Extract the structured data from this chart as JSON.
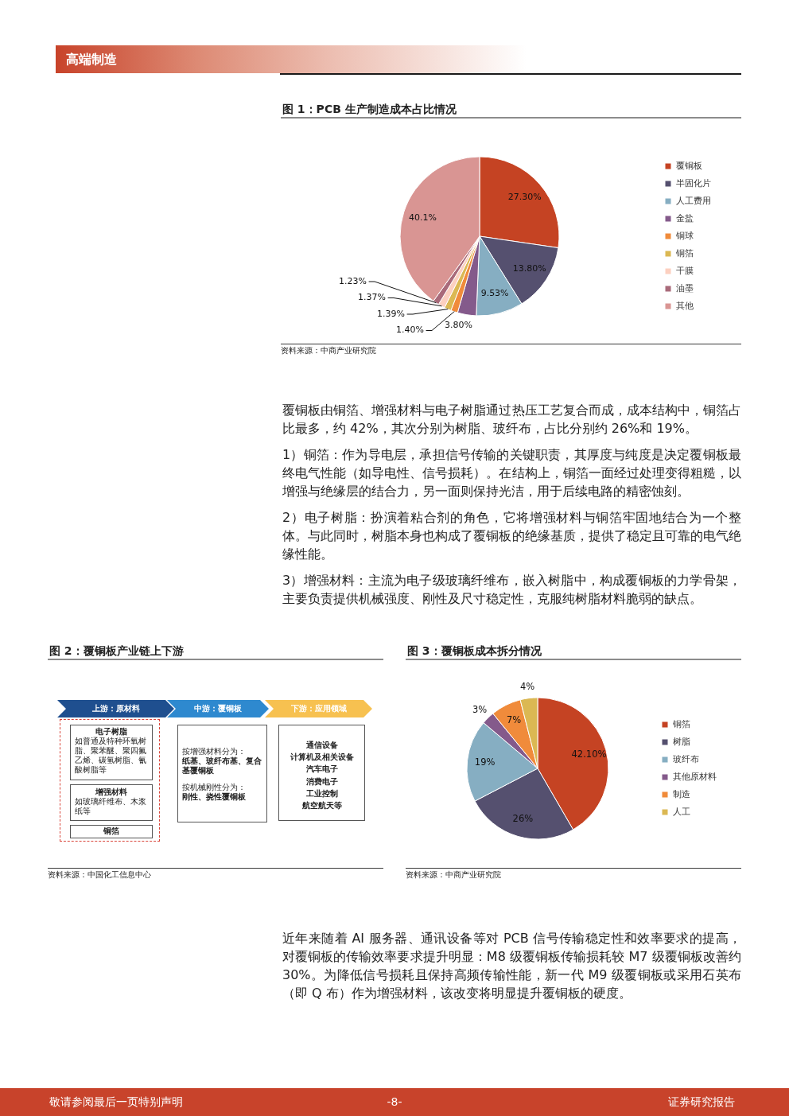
{
  "chart_data": [
    {
      "type": "other",
      "annotations": [
        "高端制造"
      ]
    },
    {
      "type": "pie",
      "title": "图 1：PCB 生产制造成本占比情况",
      "categories": [
        "覆铜板",
        "半固化片",
        "人工费用",
        "金盐",
        "铜球",
        "铜箔",
        "干膜",
        "油墨",
        "其他"
      ],
      "values": [
        27.3,
        13.8,
        9.53,
        3.8,
        1.4,
        1.39,
        1.37,
        1.23,
        40.1
      ],
      "value_labels": [
        "27.30%",
        "13.80%",
        "9.53%",
        "3.80%",
        "1.40%",
        "1.39%",
        "1.37%",
        "1.23%",
        "40.1%"
      ],
      "colors": [
        "#c54323",
        "#55506f",
        "#86aec2",
        "#845a8b",
        "#f08b3b",
        "#dbb853",
        "#fcd0c0",
        "#a96a7a",
        "#d99593"
      ],
      "legend": "right",
      "annotations": [
        "资料来源：中商产业研究院"
      ]
    },
    {
      "type": "other",
      "annotations": [
        "覆铜板由铜箔、增强材料与电子树脂通过热压工艺复合而成，成本结构中，铜箔占比最多，约 42%，其次分别为树脂、玻纤布，占比分别约 26%和 19%。",
        "1）铜箔：作为导电层，承担信号传输的关键职责，其厚度与纯度是决定覆铜板最终电气性能（如导电性、信号损耗）。在结构上，铜箔一面经过处理变得粗糙，以增强与绝缘层的结合力，另一面则保持光洁，用于后续电路的精密蚀刻。",
        "2）电子树脂：扮演着粘合剂的角色，它将增强材料与铜箔牢固地结合为一个整体。与此同时，树脂本身也构成了覆铜板的绝缘基质，提供了稳定且可靠的电气绝缘性能。",
        "3）增强材料：主流为电子级玻璃纤维布，嵌入树脂中，构成覆铜板的力学骨架，主要负责提供机械强度、刚性及尺寸稳定性，克服纯树脂材料脆弱的缺点。"
      ]
    },
    {
      "type": "other",
      "title": "图 2：覆铜板产业链上下游",
      "categories": [
        "上游：原材料",
        "中游：覆铜板",
        "下游：应用领域"
      ],
      "annotations": [
        "电子树脂",
        "如普通及特种环氧树脂、聚苯醚、聚四氟乙烯、碳氢树脂、氰酸树脂等",
        "增强材料",
        "如玻璃纤维布、木浆纸等",
        "铜箔",
        "按增强材料分为：",
        "纸基、玻纤布基、复合基覆铜板",
        "按机械刚性分为：",
        "刚性、挠性覆铜板",
        "通信设备",
        "计算机及相关设备",
        "汽车电子",
        "消费电子",
        "工业控制",
        "航空航天等",
        "资料来源：中国化工信息中心"
      ]
    },
    {
      "type": "pie",
      "title": "图 3：覆铜板成本拆分情况",
      "categories": [
        "铜箔",
        "树脂",
        "玻纤布",
        "其他原材料",
        "制造",
        "人工"
      ],
      "values": [
        42.1,
        26,
        19,
        3,
        7,
        4
      ],
      "value_labels": [
        "42.10%",
        "26%",
        "19%",
        "3%",
        "7%",
        "4%"
      ],
      "colors": [
        "#c54323",
        "#55506f",
        "#86aec2",
        "#845a8b",
        "#f08b3b",
        "#dbb853"
      ],
      "legend": "right",
      "annotations": [
        "资料来源：中商产业研究院"
      ]
    },
    {
      "type": "other",
      "annotations": [
        "近年来随着 AI 服务器、通讯设备等对 PCB 信号传输稳定性和效率要求的提高，对覆铜板的传输效率要求提升明显：M8 级覆铜板传输损耗较 M7 级覆铜板改善约 30%。为降低信号损耗且保持高频传输性能，新一代 M9 级覆铜板或采用石英布（即 Q 布）作为增强材料，该改变将明显提升覆铜板的硬度。"
      ]
    },
    {
      "type": "other",
      "annotations": [
        "敬请参阅最后一页特别声明",
        "-8-",
        "证券研究报告"
      ]
    }
  ]
}
